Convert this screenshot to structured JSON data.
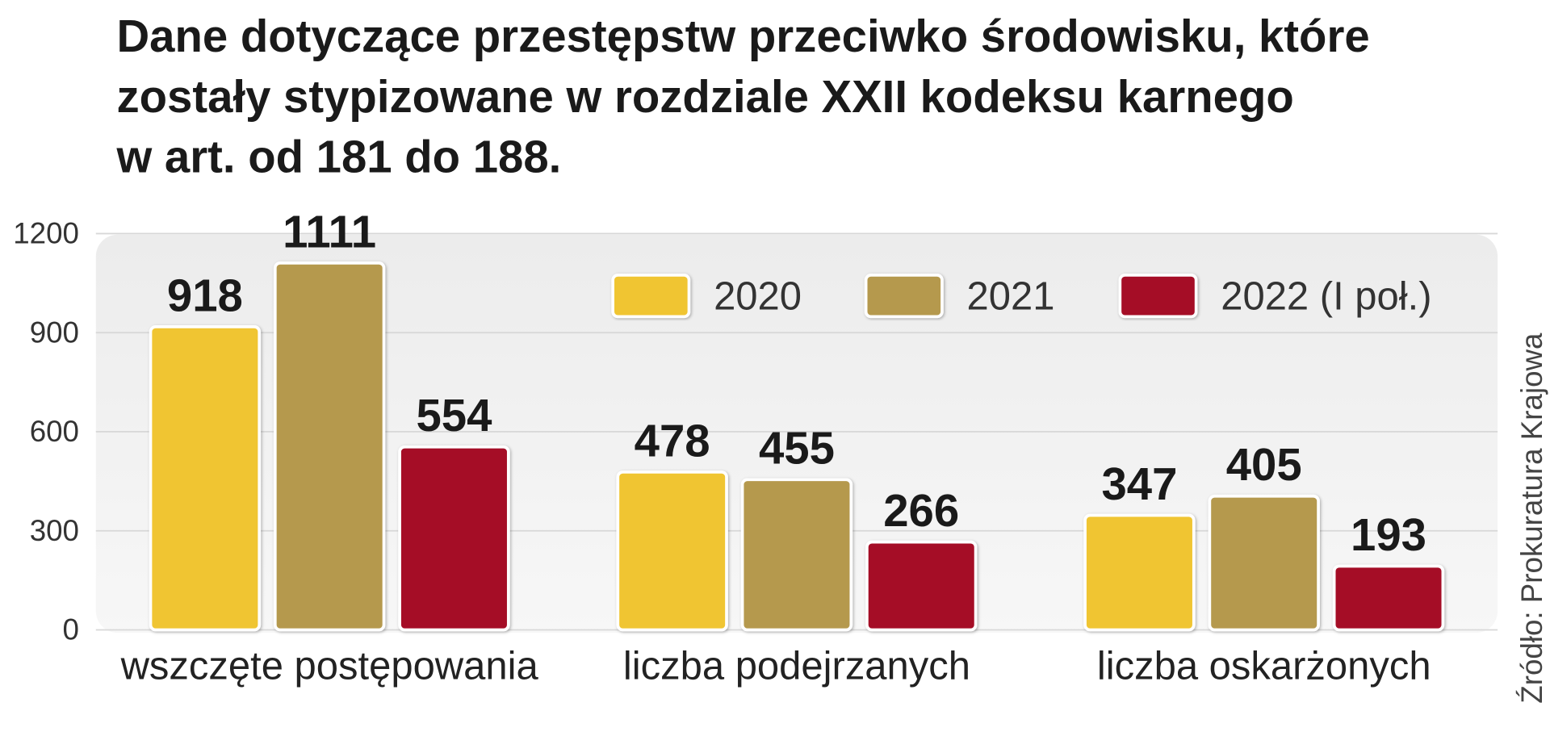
{
  "chart_data": {
    "type": "bar",
    "title": [
      "Dane dotyczące przestępstw przeciwko środowisku, które",
      "zostały stypizowane w rozdziale XXII kodeksu karnego",
      "w art. od 181 do 188."
    ],
    "categories": [
      "wszczęte postępowania",
      "liczba podejrzanych",
      "liczba oskarżonych"
    ],
    "series": [
      {
        "name": "2020",
        "color": "#f0c531",
        "values": [
          918,
          478,
          347
        ]
      },
      {
        "name": "2021",
        "color": "#b5994e",
        "values": [
          1111,
          455,
          405
        ]
      },
      {
        "name": "2022 (I poł.)",
        "color": "#a50f28",
        "values": [
          554,
          266,
          193
        ]
      }
    ],
    "ylim": [
      0,
      1200
    ],
    "yticks": [
      0,
      300,
      600,
      900,
      1200
    ],
    "grid": true,
    "legend": "top-right",
    "source": "Źródło: Prokuratura Krajowa"
  }
}
